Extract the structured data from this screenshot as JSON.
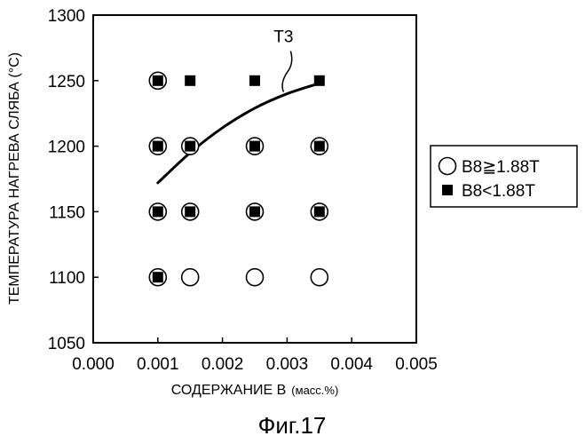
{
  "figure_caption": "Фиг.17",
  "chart_data": {
    "type": "scatter",
    "xlabel": "СОДЕРЖАНИЕ B",
    "xlabel_unit": "(масс.%)",
    "ylabel": "ТЕМПЕРАТУРА НАГРЕВА СЛЯБА (°C)",
    "xlim": [
      0.0,
      0.005
    ],
    "ylim": [
      1050,
      1300
    ],
    "x_ticks": [
      "0.000",
      "0.001",
      "0.002",
      "0.003",
      "0.004",
      "0.005"
    ],
    "y_ticks": [
      "1050",
      "1100",
      "1150",
      "1200",
      "1250",
      "1300"
    ],
    "grid": false,
    "legend_position": "right",
    "series": [
      {
        "name": "B8≧1.88T",
        "marker": "open-circle",
        "points": [
          {
            "x": 0.001,
            "y": 1100
          },
          {
            "x": 0.0015,
            "y": 1100
          },
          {
            "x": 0.0025,
            "y": 1100
          },
          {
            "x": 0.0035,
            "y": 1100
          },
          {
            "x": 0.001,
            "y": 1150
          },
          {
            "x": 0.0015,
            "y": 1150
          },
          {
            "x": 0.0025,
            "y": 1150
          },
          {
            "x": 0.0035,
            "y": 1150
          },
          {
            "x": 0.001,
            "y": 1200
          },
          {
            "x": 0.0015,
            "y": 1200
          },
          {
            "x": 0.0025,
            "y": 1200
          },
          {
            "x": 0.0035,
            "y": 1200
          },
          {
            "x": 0.001,
            "y": 1250
          }
        ]
      },
      {
        "name": "B8<1.88T",
        "marker": "filled-square",
        "points": [
          {
            "x": 0.001,
            "y": 1100
          },
          {
            "x": 0.001,
            "y": 1150
          },
          {
            "x": 0.0015,
            "y": 1150
          },
          {
            "x": 0.0025,
            "y": 1150
          },
          {
            "x": 0.0035,
            "y": 1150
          },
          {
            "x": 0.001,
            "y": 1200
          },
          {
            "x": 0.0015,
            "y": 1200
          },
          {
            "x": 0.0025,
            "y": 1200
          },
          {
            "x": 0.0035,
            "y": 1200
          },
          {
            "x": 0.001,
            "y": 1250
          },
          {
            "x": 0.0015,
            "y": 1250
          },
          {
            "x": 0.0025,
            "y": 1250
          },
          {
            "x": 0.0035,
            "y": 1250
          }
        ]
      }
    ],
    "curves": [
      {
        "label": "T3",
        "points": [
          {
            "x": 0.001,
            "y": 1172
          },
          {
            "x": 0.0015,
            "y": 1195
          },
          {
            "x": 0.002,
            "y": 1214
          },
          {
            "x": 0.0025,
            "y": 1229
          },
          {
            "x": 0.003,
            "y": 1240
          },
          {
            "x": 0.0035,
            "y": 1248
          }
        ]
      }
    ]
  }
}
